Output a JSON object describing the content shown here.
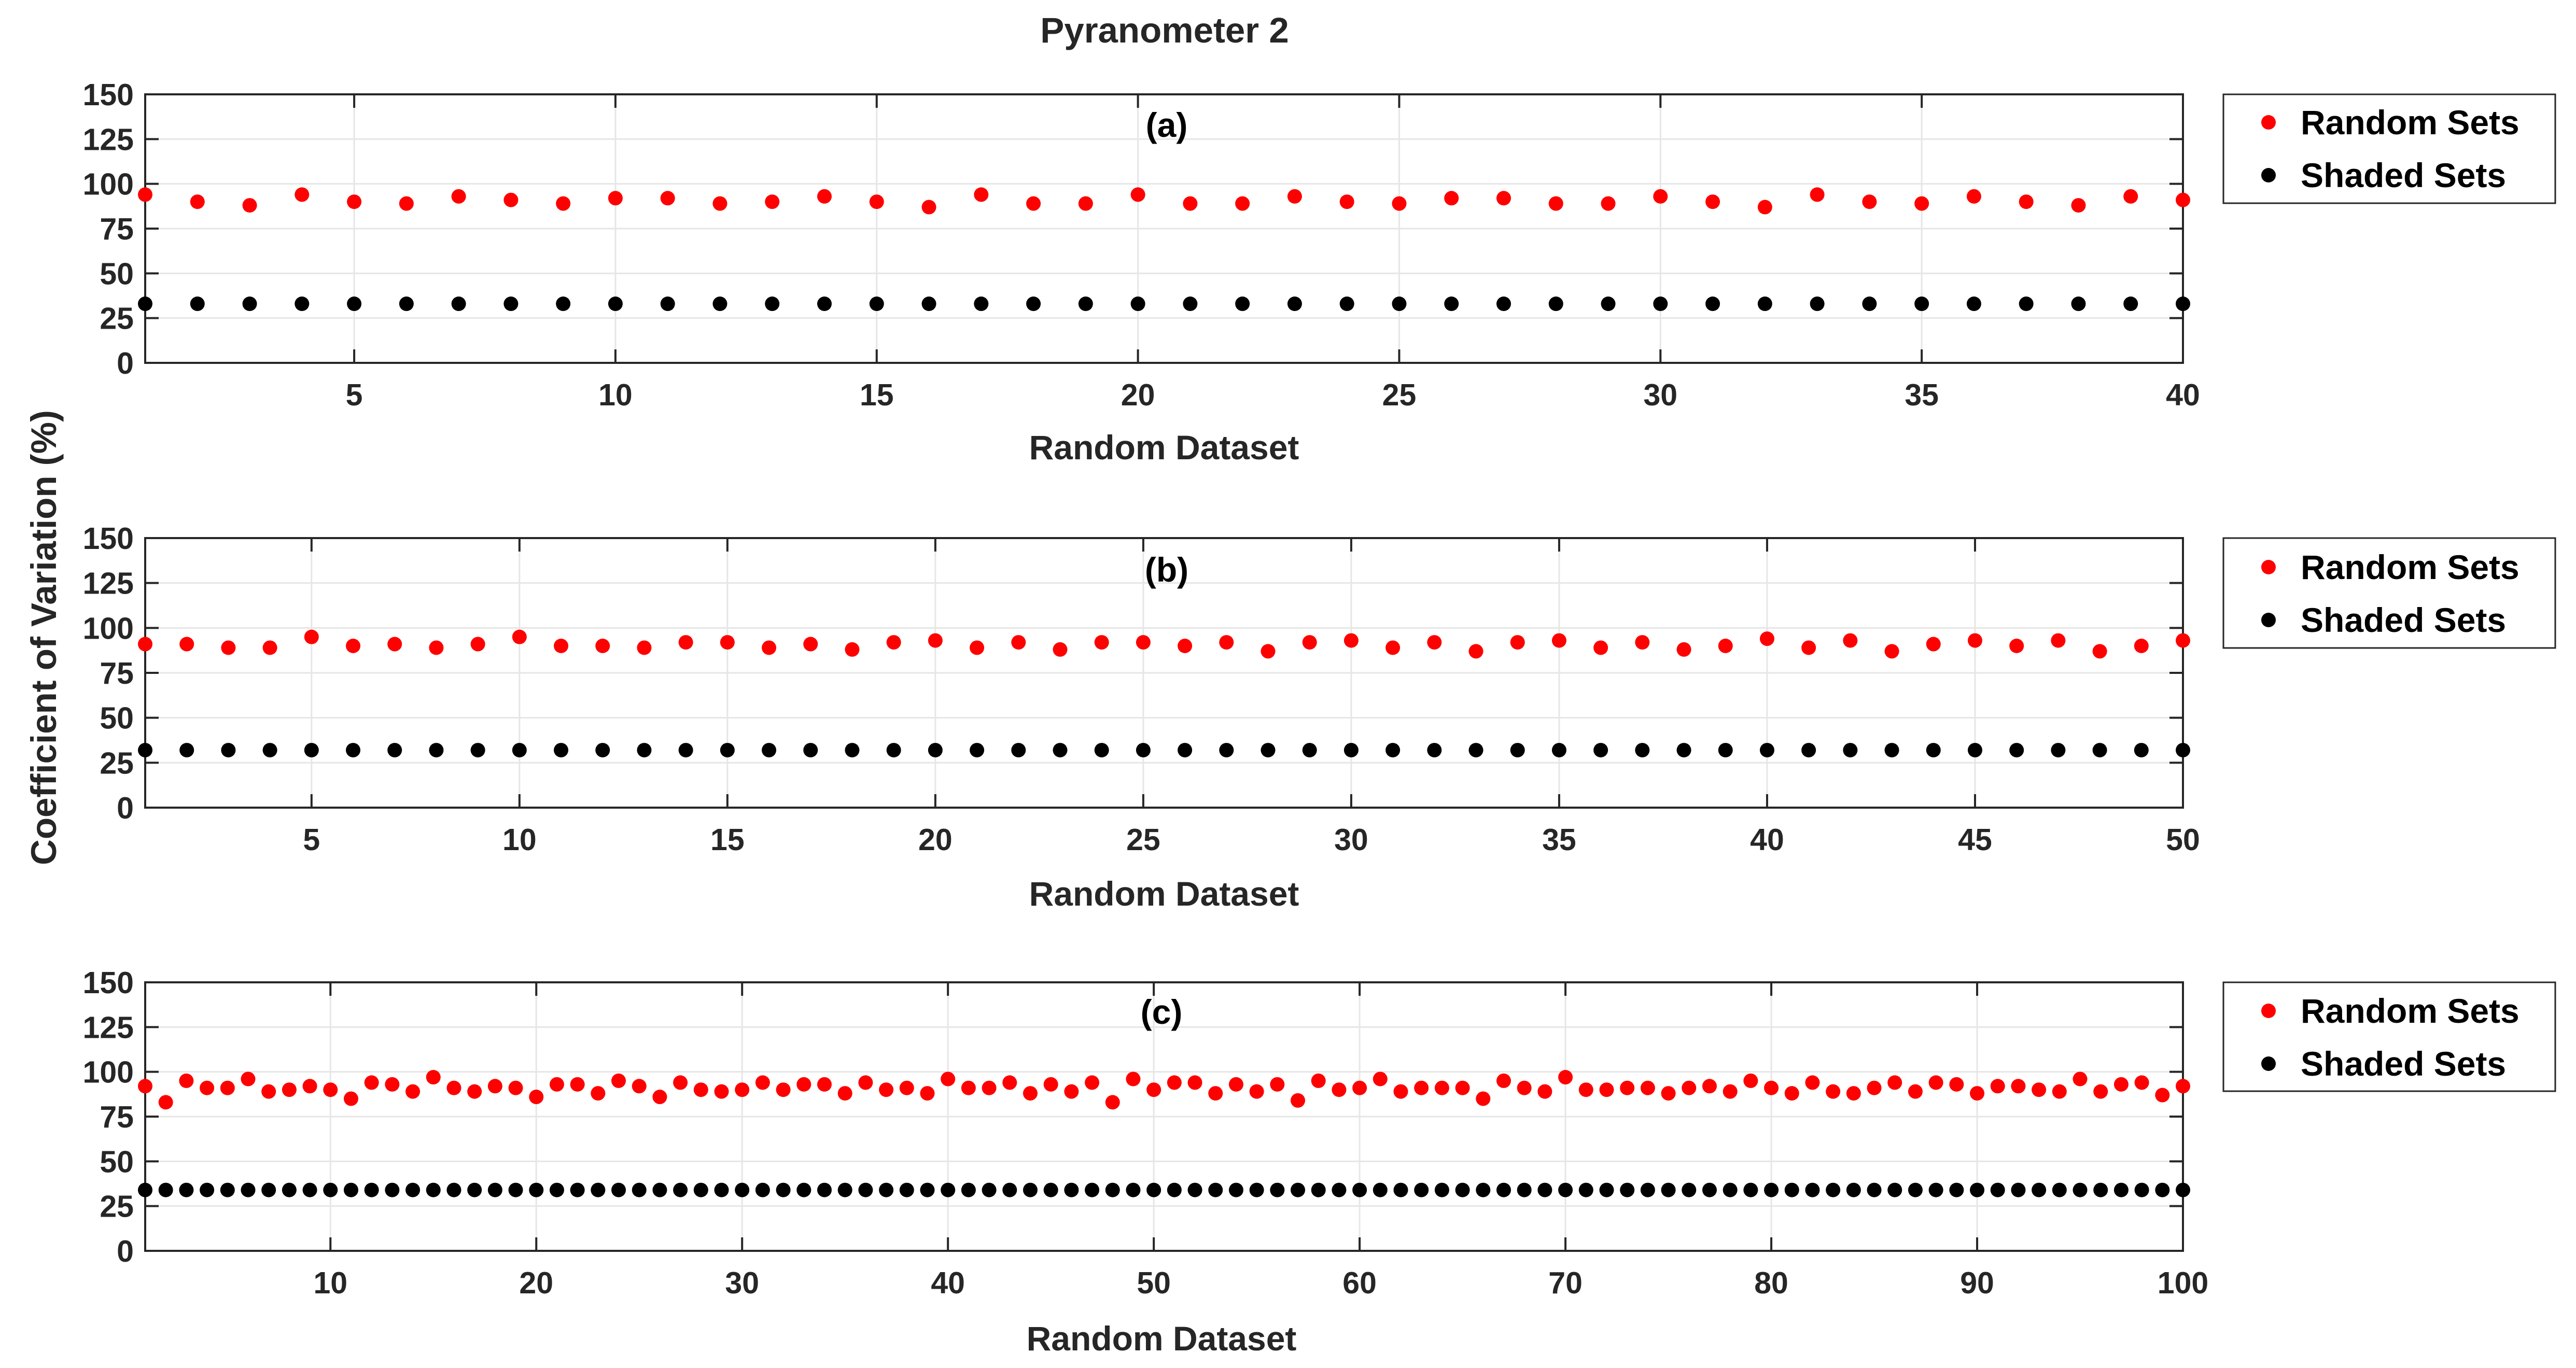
{
  "figure": {
    "title": "Pyranometer 2",
    "ylabel": "Coefficient of Variation (%)",
    "background": "#ffffff",
    "colors": {
      "random": "#ff0000",
      "shaded": "#000000",
      "axis": "#262626",
      "grid": "#e6e6e6"
    }
  },
  "chart_data": [
    {
      "type": "scatter",
      "panel_label": "(a)",
      "xlabel": "Random Dataset",
      "xlim": [
        1,
        40
      ],
      "xticks": [
        5,
        10,
        15,
        20,
        25,
        30,
        35,
        40
      ],
      "ylim": [
        0,
        150
      ],
      "yticks": [
        0,
        25,
        50,
        75,
        100,
        125,
        150
      ],
      "grid": true,
      "legend_position": "outside-right",
      "series": [
        {
          "name": "Random Sets",
          "color": "#ff0000",
          "x": [
            1,
            2,
            3,
            4,
            5,
            6,
            7,
            8,
            9,
            10,
            11,
            12,
            13,
            14,
            15,
            16,
            17,
            18,
            19,
            20,
            21,
            22,
            23,
            24,
            25,
            26,
            27,
            28,
            29,
            30,
            31,
            32,
            33,
            34,
            35,
            36,
            37,
            38,
            39,
            40
          ],
          "y": [
            94,
            90,
            88,
            94,
            90,
            89,
            93,
            91,
            89,
            92,
            92,
            89,
            90,
            93,
            90,
            87,
            94,
            89,
            89,
            94,
            89,
            89,
            93,
            90,
            89,
            92,
            92,
            89,
            89,
            93,
            90,
            87,
            94,
            90,
            89,
            93,
            90,
            88,
            93,
            91
          ]
        },
        {
          "name": "Shaded Sets",
          "color": "#000000",
          "x": [
            1,
            2,
            3,
            4,
            5,
            6,
            7,
            8,
            9,
            10,
            11,
            12,
            13,
            14,
            15,
            16,
            17,
            18,
            19,
            20,
            21,
            22,
            23,
            24,
            25,
            26,
            27,
            28,
            29,
            30,
            31,
            32,
            33,
            34,
            35,
            36,
            37,
            38,
            39,
            40
          ],
          "y": [
            33,
            33,
            33,
            33,
            33,
            33,
            33,
            33,
            33,
            33,
            33,
            33,
            33,
            33,
            33,
            33,
            33,
            33,
            33,
            33,
            33,
            33,
            33,
            33,
            33,
            33,
            33,
            33,
            33,
            33,
            33,
            33,
            33,
            33,
            33,
            33,
            33,
            33,
            33,
            33
          ]
        }
      ]
    },
    {
      "type": "scatter",
      "panel_label": "(b)",
      "xlabel": "Random Dataset",
      "xlim": [
        1,
        50
      ],
      "xticks": [
        5,
        10,
        15,
        20,
        25,
        30,
        35,
        40,
        45,
        50
      ],
      "ylim": [
        0,
        150
      ],
      "yticks": [
        0,
        25,
        50,
        75,
        100,
        125,
        150
      ],
      "grid": true,
      "legend_position": "outside-right",
      "series": [
        {
          "name": "Random Sets",
          "color": "#ff0000",
          "x": [
            1,
            2,
            3,
            4,
            5,
            6,
            7,
            8,
            9,
            10,
            11,
            12,
            13,
            14,
            15,
            16,
            17,
            18,
            19,
            20,
            21,
            22,
            23,
            24,
            25,
            26,
            27,
            28,
            29,
            30,
            31,
            32,
            33,
            34,
            35,
            36,
            37,
            38,
            39,
            40,
            41,
            42,
            43,
            44,
            45,
            46,
            47,
            48,
            49,
            50
          ],
          "y": [
            91,
            91,
            89,
            89,
            95,
            90,
            91,
            89,
            91,
            95,
            90,
            90,
            89,
            92,
            92,
            89,
            91,
            88,
            92,
            93,
            89,
            92,
            88,
            92,
            92,
            90,
            92,
            87,
            92,
            93,
            89,
            92,
            87,
            92,
            93,
            89,
            92,
            88,
            90,
            94,
            89,
            93,
            87,
            91,
            93,
            90,
            93,
            87,
            90,
            93
          ]
        },
        {
          "name": "Shaded Sets",
          "color": "#000000",
          "x": [
            1,
            2,
            3,
            4,
            5,
            6,
            7,
            8,
            9,
            10,
            11,
            12,
            13,
            14,
            15,
            16,
            17,
            18,
            19,
            20,
            21,
            22,
            23,
            24,
            25,
            26,
            27,
            28,
            29,
            30,
            31,
            32,
            33,
            34,
            35,
            36,
            37,
            38,
            39,
            40,
            41,
            42,
            43,
            44,
            45,
            46,
            47,
            48,
            49,
            50
          ],
          "y": [
            32,
            32,
            32,
            32,
            32,
            32,
            32,
            32,
            32,
            32,
            32,
            32,
            32,
            32,
            32,
            32,
            32,
            32,
            32,
            32,
            32,
            32,
            32,
            32,
            32,
            32,
            32,
            32,
            32,
            32,
            32,
            32,
            32,
            32,
            32,
            32,
            32,
            32,
            32,
            32,
            32,
            32,
            32,
            32,
            32,
            32,
            32,
            32,
            32,
            32
          ]
        }
      ]
    },
    {
      "type": "scatter",
      "panel_label": "(c)",
      "xlabel": "Random Dataset",
      "xlim": [
        1,
        100
      ],
      "xticks": [
        10,
        20,
        30,
        40,
        50,
        60,
        70,
        80,
        90,
        100
      ],
      "ylim": [
        0,
        150
      ],
      "yticks": [
        0,
        25,
        50,
        75,
        100,
        125,
        150
      ],
      "grid": true,
      "legend_position": "outside-right",
      "series": [
        {
          "name": "Random Sets",
          "color": "#ff0000",
          "x": [
            1,
            2,
            3,
            4,
            5,
            6,
            7,
            8,
            9,
            10,
            11,
            12,
            13,
            14,
            15,
            16,
            17,
            18,
            19,
            20,
            21,
            22,
            23,
            24,
            25,
            26,
            27,
            28,
            29,
            30,
            31,
            32,
            33,
            34,
            35,
            36,
            37,
            38,
            39,
            40,
            41,
            42,
            43,
            44,
            45,
            46,
            47,
            48,
            49,
            50,
            51,
            52,
            53,
            54,
            55,
            56,
            57,
            58,
            59,
            60,
            61,
            62,
            63,
            64,
            65,
            66,
            67,
            68,
            69,
            70,
            71,
            72,
            73,
            74,
            75,
            76,
            77,
            78,
            79,
            80,
            81,
            82,
            83,
            84,
            85,
            86,
            87,
            88,
            89,
            90,
            91,
            92,
            93,
            94,
            95,
            96,
            97,
            98,
            99,
            100
          ],
          "y": [
            92,
            83,
            95,
            91,
            91,
            96,
            89,
            90,
            92,
            90,
            85,
            94,
            93,
            89,
            97,
            91,
            89,
            92,
            91,
            86,
            93,
            93,
            88,
            95,
            92,
            86,
            94,
            90,
            89,
            90,
            94,
            90,
            93,
            93,
            88,
            94,
            90,
            91,
            88,
            96,
            91,
            91,
            94,
            88,
            93,
            89,
            94,
            83,
            96,
            90,
            94,
            94,
            88,
            93,
            89,
            93,
            84,
            95,
            90,
            91,
            96,
            89,
            91,
            91,
            91,
            85,
            95,
            91,
            89,
            97,
            90,
            90,
            91,
            91,
            88,
            91,
            92,
            89,
            95,
            91,
            88,
            94,
            89,
            88,
            91,
            94,
            89,
            94,
            93,
            88,
            92,
            92,
            90,
            89,
            96,
            89,
            93,
            94,
            87,
            92
          ]
        },
        {
          "name": "Shaded Sets",
          "color": "#000000",
          "x": [
            1,
            2,
            3,
            4,
            5,
            6,
            7,
            8,
            9,
            10,
            11,
            12,
            13,
            14,
            15,
            16,
            17,
            18,
            19,
            20,
            21,
            22,
            23,
            24,
            25,
            26,
            27,
            28,
            29,
            30,
            31,
            32,
            33,
            34,
            35,
            36,
            37,
            38,
            39,
            40,
            41,
            42,
            43,
            44,
            45,
            46,
            47,
            48,
            49,
            50,
            51,
            52,
            53,
            54,
            55,
            56,
            57,
            58,
            59,
            60,
            61,
            62,
            63,
            64,
            65,
            66,
            67,
            68,
            69,
            70,
            71,
            72,
            73,
            74,
            75,
            76,
            77,
            78,
            79,
            80,
            81,
            82,
            83,
            84,
            85,
            86,
            87,
            88,
            89,
            90,
            91,
            92,
            93,
            94,
            95,
            96,
            97,
            98,
            99,
            100
          ],
          "y": [
            34,
            34,
            34,
            34,
            34,
            34,
            34,
            34,
            34,
            34,
            34,
            34,
            34,
            34,
            34,
            34,
            34,
            34,
            34,
            34,
            34,
            34,
            34,
            34,
            34,
            34,
            34,
            34,
            34,
            34,
            34,
            34,
            34,
            34,
            34,
            34,
            34,
            34,
            34,
            34,
            34,
            34,
            34,
            34,
            34,
            34,
            34,
            34,
            34,
            34,
            34,
            34,
            34,
            34,
            34,
            34,
            34,
            34,
            34,
            34,
            34,
            34,
            34,
            34,
            34,
            34,
            34,
            34,
            34,
            34,
            34,
            34,
            34,
            34,
            34,
            34,
            34,
            34,
            34,
            34,
            34,
            34,
            34,
            34,
            34,
            34,
            34,
            34,
            34,
            34,
            34,
            34,
            34,
            34,
            34,
            34,
            34,
            34,
            34,
            34
          ]
        }
      ]
    }
  ]
}
